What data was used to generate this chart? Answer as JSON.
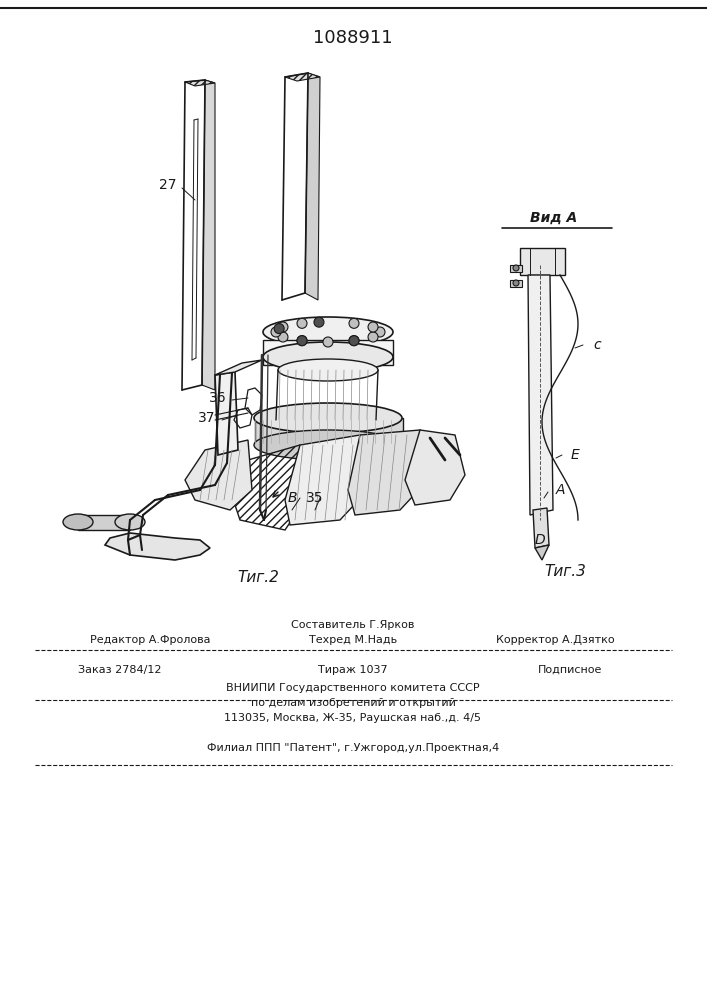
{
  "patent_number": "1088911",
  "bg_color": "#ffffff",
  "line_color": "#1a1a1a",
  "fig2_caption": "Τиг.2",
  "fig3_caption": "Τиг.3",
  "vid_a_label": "Вид A",
  "footer_sestavitel": "Составитель Г.Ярков",
  "footer_editor": "Редактор А.Фролова",
  "footer_tehred": "Техред М.Надь",
  "footer_correktor": "Корректор А.Дзятко",
  "footer_zakaz": "Заказ 2784/12",
  "footer_tirazh": "Тираж 1037",
  "footer_podpisnoe": "Подписное",
  "footer_vniip": "ВНИИПИ Государственного комитета СССР",
  "footer_po_delam": "по делам изобретений и открытий",
  "footer_addr": "113035, Москва, Ж-35, Раушская наб.,д. 4/5",
  "footer_filial": "Филиал ППП \"Патент\", г.Ужгород,ул.Проектная,4"
}
